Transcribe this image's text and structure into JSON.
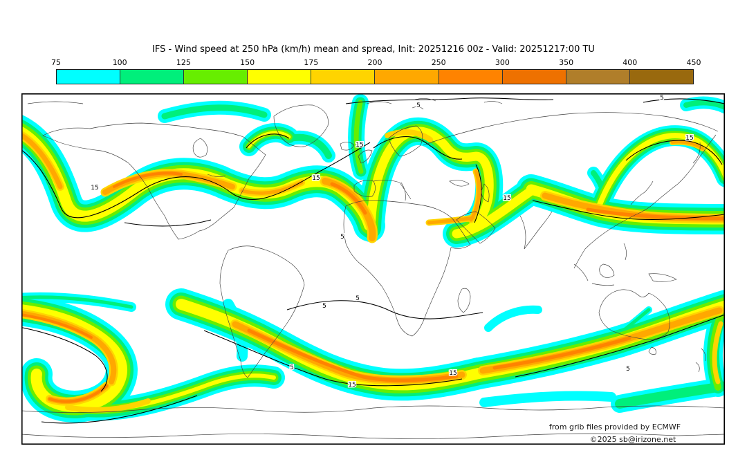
{
  "title": "IFS - Wind speed at 250 hPa (km/h) mean and spread, Init: 20251216 00z - Valid: 20251217:00 TU",
  "colorbar": {
    "tick_labels": [
      "75",
      "100",
      "125",
      "150",
      "175",
      "200",
      "250",
      "300",
      "350",
      "400",
      "450"
    ],
    "segments": [
      {
        "from": "75",
        "to": "100",
        "color": "#00FFFF"
      },
      {
        "from": "100",
        "to": "125",
        "color": "#00EF7B"
      },
      {
        "from": "125",
        "to": "150",
        "color": "#67EE00"
      },
      {
        "from": "150",
        "to": "175",
        "color": "#FFFF00"
      },
      {
        "from": "175",
        "to": "200",
        "color": "#FFD400"
      },
      {
        "from": "200",
        "to": "250",
        "color": "#FFA800"
      },
      {
        "from": "250",
        "to": "300",
        "color": "#FF8300"
      },
      {
        "from": "300",
        "to": "350",
        "color": "#EE7100"
      },
      {
        "from": "350",
        "to": "400",
        "color": "#B07E2A"
      },
      {
        "from": "400",
        "to": "450",
        "color": "#99690E"
      }
    ]
  },
  "palette": {
    "cyan": "#00FFFF",
    "green": "#00EF7B",
    "chart": "#67EE00",
    "yellow": "#FFFF00",
    "gold": "#FFD400",
    "amber": "#FFA800",
    "orange": "#FF8300"
  },
  "map": {
    "label_inner_value": "15",
    "label_outer_value": "5"
  },
  "attribution": {
    "line1": "from grib files provided by ECMWF",
    "line2": "©2025 sb@irizone.net"
  },
  "chart_data": {
    "type": "heatmap",
    "title": "IFS - Wind speed at 250 hPa (km/h) mean and spread, Init: 20251216 00z - Valid: 20251217:00 TU",
    "variable": "Wind speed at 250 hPa",
    "units": "km/h",
    "model": "IFS",
    "init": "20251216 00z",
    "valid": "20251217:00 TU",
    "colorbar_ticks": [
      75,
      100,
      125,
      150,
      175,
      200,
      250,
      300,
      350,
      400,
      450
    ],
    "colorbar_colors": [
      "#00FFFF",
      "#00EF7B",
      "#67EE00",
      "#FFFF00",
      "#FFD400",
      "#FFA800",
      "#FF8300",
      "#EE7100",
      "#B07E2A",
      "#99690E"
    ],
    "spread_contour_levels_labeled": [
      5,
      15
    ],
    "projection": "equirectangular world map, 90N-90S, 180W-180E",
    "legend_position": "top",
    "shading": "mean wind speed filled contours (jet streams in both hemispheres)",
    "line_contours": "ensemble spread, thin black lines labeled 5 and 15"
  }
}
